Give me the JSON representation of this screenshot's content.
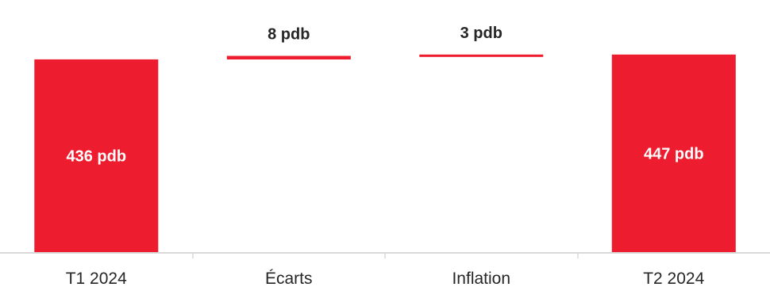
{
  "chart_data": {
    "type": "bar",
    "subtype": "waterfall",
    "categories": [
      "T1 2024",
      "Écarts",
      "Inflation",
      "T2 2024"
    ],
    "values": [
      436,
      8,
      3,
      447
    ],
    "kinds": [
      "total",
      "increase",
      "increase",
      "total"
    ],
    "data_labels": [
      "436 pdb",
      "8 pdb",
      "3 pdb",
      "447 pdb"
    ],
    "title": "",
    "xlabel": "",
    "ylabel": "",
    "y_axis_visible": false,
    "grid": false,
    "legend": "none",
    "colors": {
      "bar": "#ED1C2E",
      "axis": "#D9D9D9",
      "text": "#262626",
      "label_inside": "#FFFFFF"
    }
  }
}
